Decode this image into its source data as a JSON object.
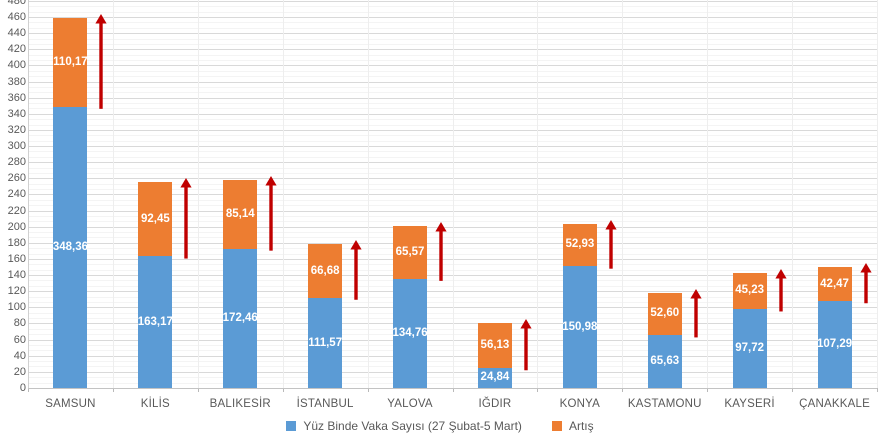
{
  "chart_data": {
    "type": "bar",
    "stacked": true,
    "title": "",
    "xlabel": "",
    "ylabel": "",
    "categories": [
      "SAMSUN",
      "KİLİS",
      "BALIKESİR",
      "İSTANBUL",
      "YALOVA",
      "IĞDIR",
      "KONYA",
      "KASTAMONU",
      "KAYSERİ",
      "ÇANAKKALE"
    ],
    "series": [
      {
        "name": "Yüz Binde Vaka Sayısı (27 Şubat-5 Mart)",
        "color": "#5B9BD5",
        "values": [
          348.36,
          163.17,
          172.46,
          111.57,
          134.76,
          24.84,
          150.98,
          65.63,
          97.72,
          107.29
        ],
        "display_values": [
          "348,36",
          "163,17",
          "172,46",
          "111,57",
          "134,76",
          "24,84",
          "150,98",
          "65,63",
          "97,72",
          "107,29"
        ]
      },
      {
        "name": "Artış",
        "color": "#ED7D31",
        "values": [
          110.17,
          92.45,
          85.14,
          66.68,
          65.57,
          56.13,
          52.93,
          52.6,
          45.23,
          42.47
        ],
        "display_values": [
          "110,17",
          "92,45",
          "85,14",
          "66,68",
          "65,57",
          "56,13",
          "52,93",
          "52,60",
          "45,23",
          "42,47"
        ]
      }
    ],
    "ylim": [
      0,
      480
    ],
    "ytick_step": 20,
    "ytick_labels": [
      "0",
      "20",
      "40",
      "60",
      "80",
      "100",
      "120",
      "140",
      "160",
      "180",
      "200",
      "220",
      "240",
      "260",
      "280",
      "300",
      "320",
      "340",
      "360",
      "380",
      "400",
      "420",
      "440",
      "460",
      "480"
    ],
    "grid": true,
    "legend_position": "bottom",
    "annotations": {
      "arrow_icon": "red-up-arrow",
      "arrow_color": "#C00000",
      "description": "dark red upward arrow beside each bar spanning the Artış segment"
    }
  }
}
